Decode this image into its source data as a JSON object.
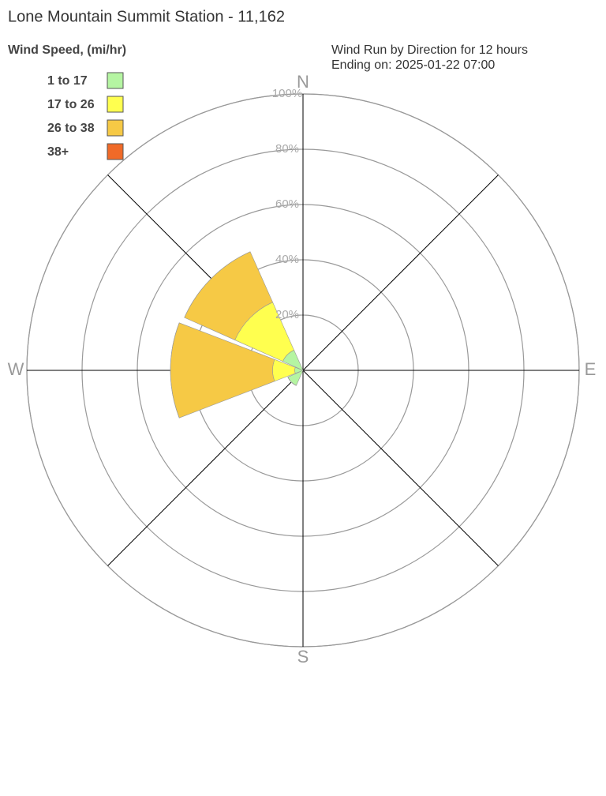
{
  "chart_data": {
    "type": "windrose",
    "title": "Lone Mountain Summit Station - 11,162",
    "legend_title": "Wind Speed, (mi/hr)",
    "subtitle": [
      "Wind Run by Direction for 12 hours",
      "Ending on: 2025-01-22 07:00"
    ],
    "categories": [
      "N",
      null,
      "E",
      null,
      "S",
      null,
      "W",
      null
    ],
    "series": [
      {
        "name": "1 to 17",
        "color": "#b5f5a2",
        "values": [
          0,
          0,
          0,
          0,
          0,
          6,
          3,
          8
        ]
      },
      {
        "name": "17 to 26",
        "color": "#ffff4f",
        "values": [
          0,
          0,
          0,
          0,
          0,
          0,
          8,
          19
        ]
      },
      {
        "name": "26 to 38",
        "color": "#f6c945",
        "values": [
          0,
          0,
          0,
          0,
          0,
          0,
          37,
          20
        ]
      },
      {
        "name": "38+",
        "color": "#f06a28",
        "values": [
          0,
          0,
          0,
          0,
          0,
          0,
          0,
          0
        ]
      }
    ],
    "rlim": [
      0,
      100
    ],
    "rticks": [
      {
        "value": 20,
        "label": "20%"
      },
      {
        "value": 40,
        "label": "40%"
      },
      {
        "value": 60,
        "label": "60%"
      },
      {
        "value": 80,
        "label": "80%"
      },
      {
        "value": 100,
        "label": "100%"
      }
    ],
    "legend": "upper left"
  }
}
